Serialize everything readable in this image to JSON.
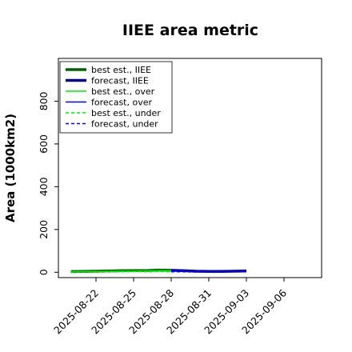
{
  "chart_data": {
    "type": "line",
    "title": "IIEE area metric",
    "xlabel": "",
    "ylabel": "Area (1000km2)",
    "xlim": [
      "2025-08-19",
      "2025-09-09"
    ],
    "ylim": [
      -25,
      1000
    ],
    "x_ticks": [
      "2025-08-22",
      "2025-08-25",
      "2025-08-28",
      "2025-08-31",
      "2025-09-03",
      "2025-09-06"
    ],
    "y_ticks": [
      0,
      200,
      400,
      600,
      800
    ],
    "highlight_tick": "2025-08-28",
    "highlight_color": "#228B22",
    "legend_position": "upper left",
    "grid": false,
    "series": [
      {
        "name": "best est., IIEE",
        "color": "#006400",
        "style": "solid",
        "width": 3.5,
        "x": [
          "2025-08-20",
          "2025-08-21",
          "2025-08-22",
          "2025-08-23",
          "2025-08-24",
          "2025-08-25",
          "2025-08-26",
          "2025-08-27",
          "2025-08-28"
        ],
        "values": [
          3,
          4,
          5,
          6,
          7,
          8,
          8,
          10,
          9
        ]
      },
      {
        "name": "forecast, IIEE",
        "color": "#00008B",
        "style": "solid",
        "width": 3.5,
        "x": [
          "2025-08-28",
          "2025-08-29",
          "2025-08-30",
          "2025-08-31",
          "2025-09-01",
          "2025-09-02",
          "2025-09-03"
        ],
        "values": [
          9,
          7,
          5,
          4,
          4,
          5,
          6
        ]
      },
      {
        "name": "best est., over",
        "color": "#00ee00",
        "style": "solid",
        "width": 1.5,
        "x": [
          "2025-08-20",
          "2025-08-21",
          "2025-08-22",
          "2025-08-23",
          "2025-08-24",
          "2025-08-25",
          "2025-08-26",
          "2025-08-27",
          "2025-08-28"
        ],
        "values": [
          2,
          3,
          3,
          4,
          5,
          5,
          6,
          7,
          7
        ]
      },
      {
        "name": "forecast, over",
        "color": "#0000ff",
        "style": "solid",
        "width": 1.5,
        "x": [
          "2025-08-28",
          "2025-08-29",
          "2025-08-30",
          "2025-08-31",
          "2025-09-01",
          "2025-09-02",
          "2025-09-03"
        ],
        "values": [
          7,
          5,
          4,
          3,
          3,
          3,
          4
        ]
      },
      {
        "name": "best est., under",
        "color": "#00ee00",
        "style": "dashed",
        "width": 1.5,
        "x": [
          "2025-08-20",
          "2025-08-21",
          "2025-08-22",
          "2025-08-23",
          "2025-08-24",
          "2025-08-25",
          "2025-08-26",
          "2025-08-27",
          "2025-08-28"
        ],
        "values": [
          1,
          1,
          2,
          2,
          2,
          3,
          2,
          3,
          2
        ]
      },
      {
        "name": "forecast, under",
        "color": "#0000ff",
        "style": "dashed",
        "width": 1.5,
        "x": [
          "2025-08-28",
          "2025-08-29",
          "2025-08-30",
          "2025-08-31",
          "2025-09-01",
          "2025-09-02",
          "2025-09-03"
        ],
        "values": [
          2,
          2,
          1,
          1,
          1,
          2,
          2
        ]
      }
    ]
  }
}
